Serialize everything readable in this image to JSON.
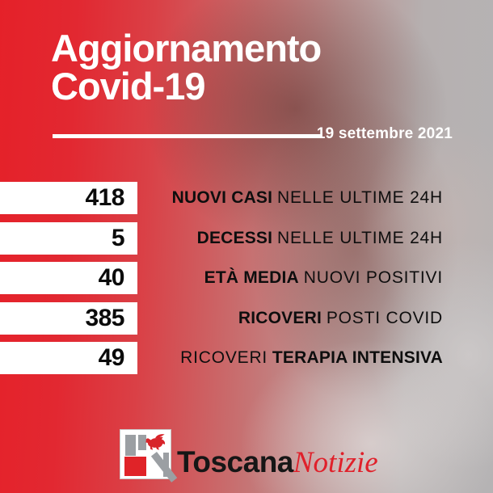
{
  "header": {
    "title_line1": "Aggiornamento",
    "title_line2": "Covid-19",
    "date": "19 settembre 2021"
  },
  "stats": [
    {
      "value": "418",
      "parts": [
        {
          "text": "NUOVI CASI",
          "bold": true
        },
        {
          "text": "NELLE ULTIME 24H",
          "bold": false
        }
      ]
    },
    {
      "value": "5",
      "parts": [
        {
          "text": "DECESSI",
          "bold": true
        },
        {
          "text": "NELLE ULTIME 24H",
          "bold": false
        }
      ]
    },
    {
      "value": "40",
      "parts": [
        {
          "text": "ETÀ MEDIA",
          "bold": true
        },
        {
          "text": "NUOVI POSITIVI",
          "bold": false
        }
      ]
    },
    {
      "value": "385",
      "parts": [
        {
          "text": "RICOVERI",
          "bold": true
        },
        {
          "text": "POSTI COVID",
          "bold": false
        }
      ]
    },
    {
      "value": "49",
      "parts": [
        {
          "text": "RICOVERI",
          "bold": false
        },
        {
          "text": "TERAPIA INTENSIVA",
          "bold": true
        }
      ]
    }
  ],
  "footer": {
    "brand_black": "Toscana",
    "brand_red": "Notizie",
    "logo_icon": "pegasus-icon"
  },
  "colors": {
    "accent_red": "#e32330",
    "background_gray": "#b5b3b4",
    "bar_white": "#ffffff",
    "text_black": "#0e0e0e",
    "title_white": "#ffffff",
    "brand_red": "#e0202a",
    "logo_gray": "#9b9fa3"
  }
}
